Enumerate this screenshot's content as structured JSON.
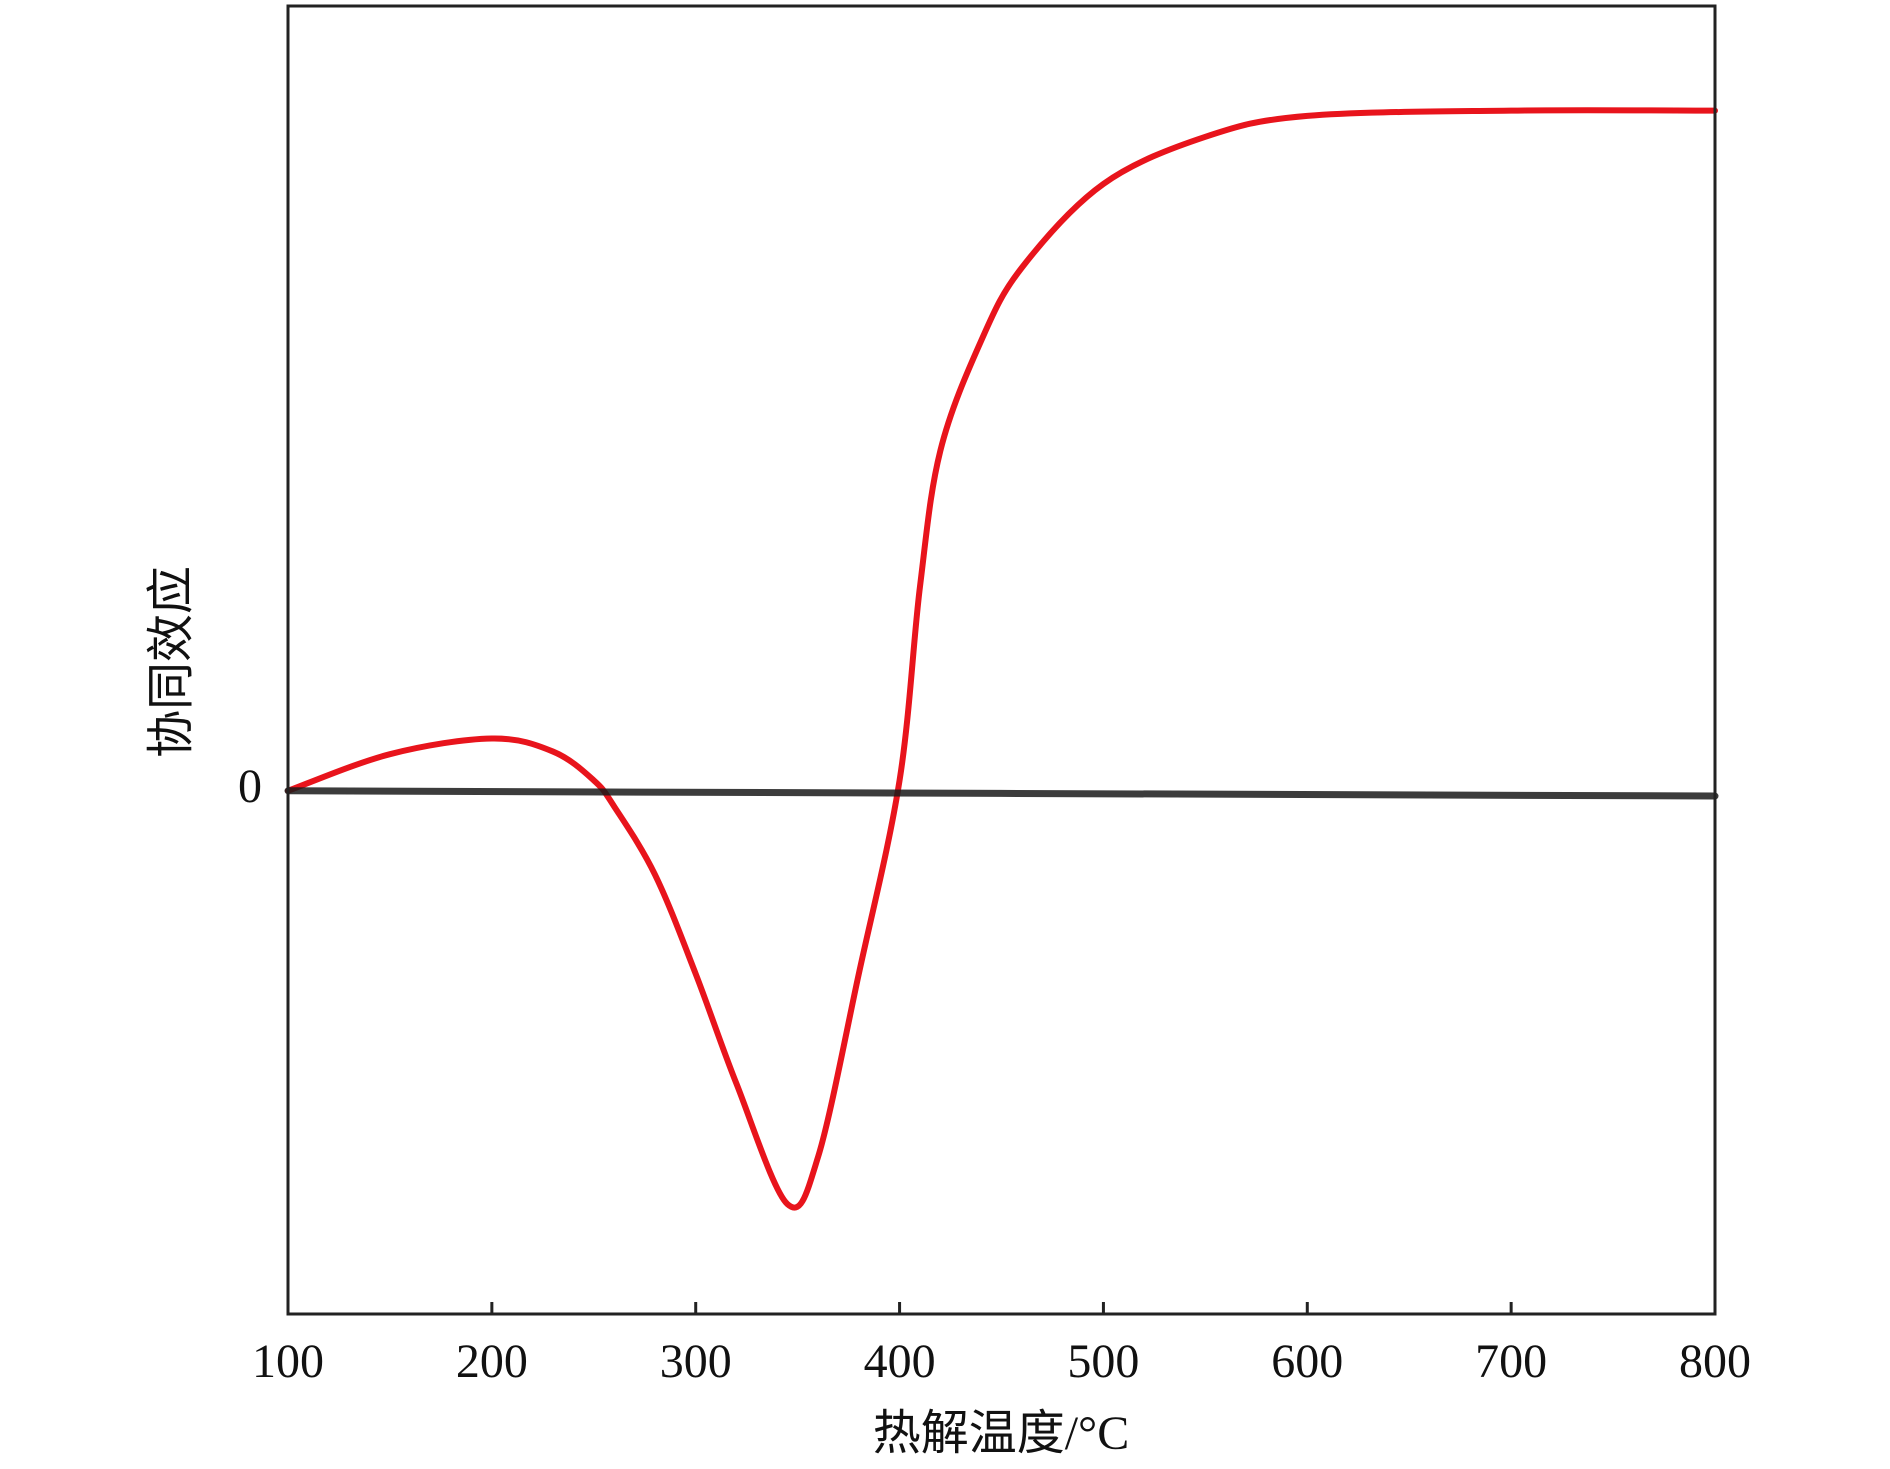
{
  "chart_data": {
    "type": "line",
    "x_label": "热解温度/°C",
    "y_label": "协同效应",
    "series": [
      {
        "color": "#e8141c",
        "x": [
          100,
          150,
          200,
          230,
          250,
          260,
          280,
          300,
          320,
          345,
          360,
          380,
          400,
          410,
          420,
          440,
          460,
          500,
          550,
          600,
          700,
          800
        ],
        "values": [
          0.0,
          0.07,
          0.1,
          0.075,
          0.02,
          -0.03,
          -0.16,
          -0.35,
          -0.56,
          -0.79,
          -0.7,
          -0.35,
          0.02,
          0.39,
          0.65,
          0.86,
          1.0,
          1.16,
          1.25,
          1.29,
          1.3,
          1.3
        ]
      },
      {
        "color": "#1a1a1a",
        "x": [
          100,
          800
        ],
        "values": [
          0,
          -0.01
        ]
      }
    ],
    "xlim": [
      100,
      800
    ],
    "xticks": [
      100,
      200,
      300,
      400,
      500,
      600,
      700,
      800
    ],
    "ylim": [
      -1,
      1.5
    ],
    "yticks": [
      0
    ]
  }
}
